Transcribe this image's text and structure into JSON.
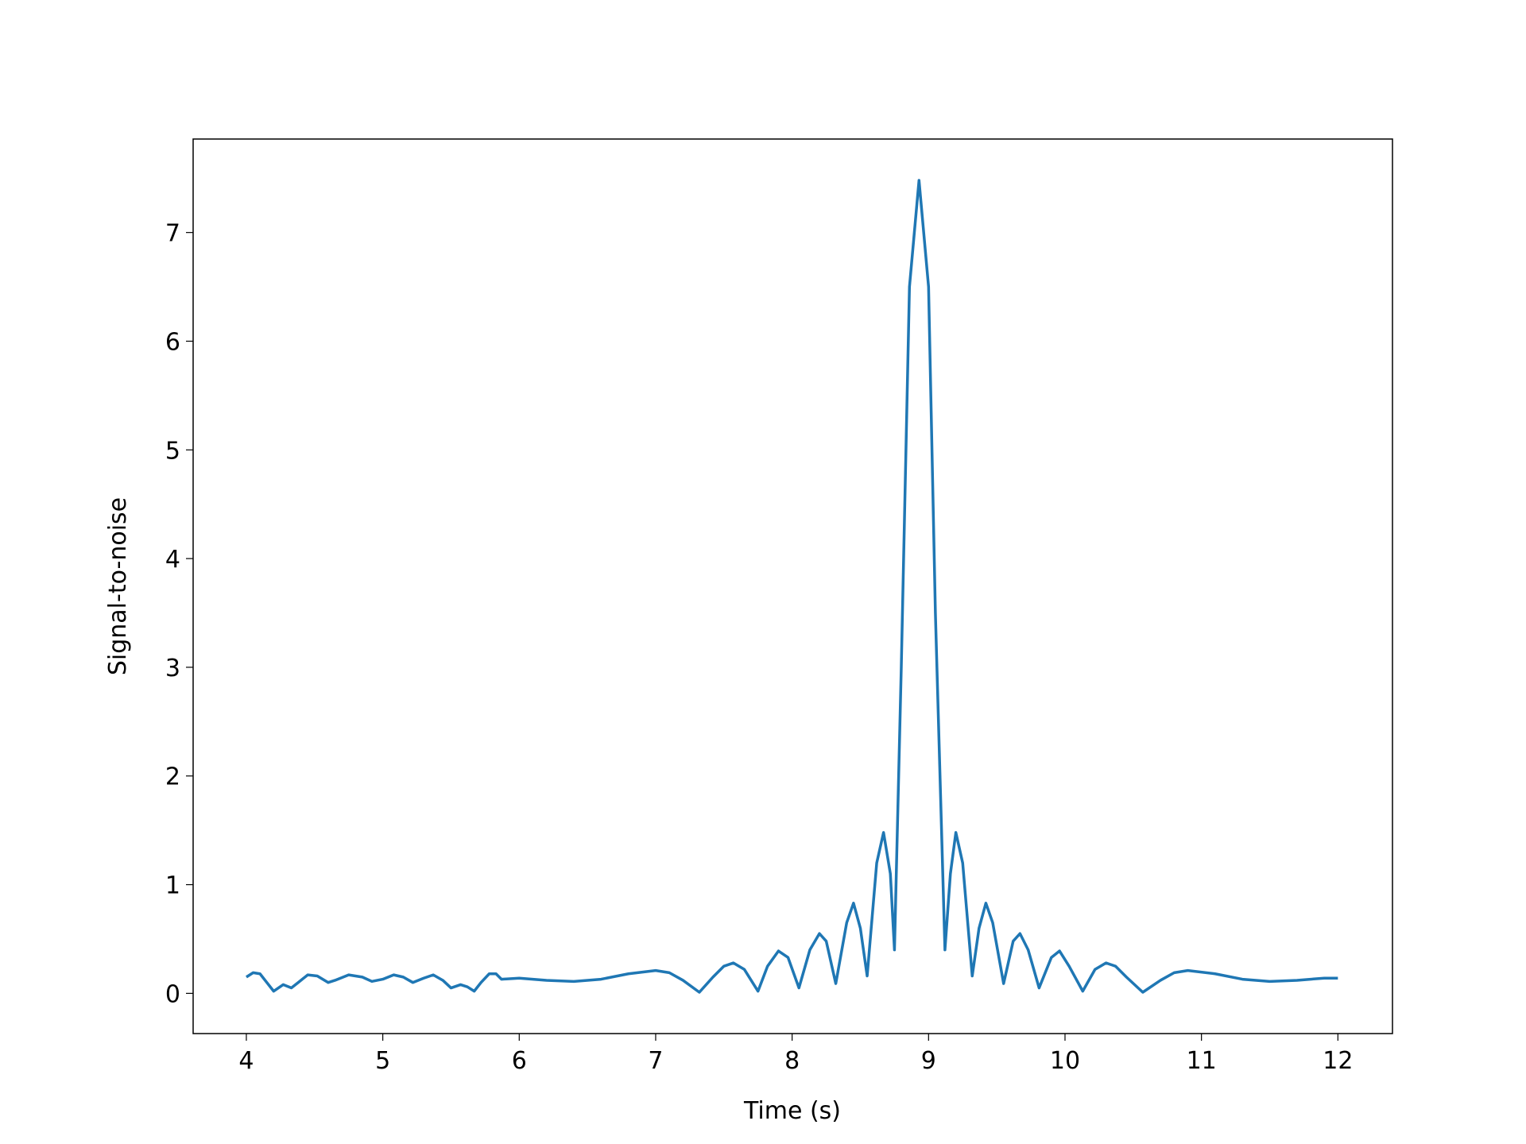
{
  "chart_data": {
    "type": "line",
    "xlabel": "Time (s)",
    "ylabel": "Signal-to-noise",
    "color": "#1f77b4",
    "x": [
      4.0,
      4.05,
      4.1,
      4.15,
      4.2,
      4.27,
      4.33,
      4.38,
      4.45,
      4.52,
      4.6,
      4.65,
      4.75,
      4.85,
      4.92,
      5.0,
      5.08,
      5.15,
      5.22,
      5.3,
      5.37,
      5.44,
      5.5,
      5.57,
      5.62,
      5.67,
      5.72,
      5.78,
      5.83,
      5.87,
      6.0,
      6.2,
      6.4,
      6.6,
      6.8,
      7.0,
      7.1,
      7.2,
      7.32,
      7.42,
      7.5,
      7.57,
      7.65,
      7.75,
      7.82,
      7.9,
      7.97,
      8.05,
      8.13,
      8.2,
      8.25,
      8.32,
      8.4,
      8.45,
      8.5,
      8.55,
      8.62,
      8.67,
      8.72,
      8.75,
      8.8,
      8.86,
      8.93,
      9.0,
      9.05,
      9.12,
      9.16,
      9.2,
      9.25,
      9.32,
      9.37,
      9.42,
      9.47,
      9.55,
      9.62,
      9.67,
      9.73,
      9.81,
      9.9,
      9.96,
      10.03,
      10.13,
      10.22,
      10.3,
      10.37,
      10.45,
      10.57,
      10.7,
      10.8,
      10.9,
      11.1,
      11.3,
      11.5,
      11.7,
      11.9,
      12.0
    ],
    "values": [
      0.15,
      0.19,
      0.18,
      0.1,
      0.02,
      0.08,
      0.05,
      0.1,
      0.17,
      0.16,
      0.1,
      0.12,
      0.17,
      0.15,
      0.11,
      0.13,
      0.17,
      0.15,
      0.1,
      0.14,
      0.17,
      0.12,
      0.05,
      0.08,
      0.06,
      0.02,
      0.1,
      0.18,
      0.18,
      0.13,
      0.14,
      0.12,
      0.11,
      0.13,
      0.18,
      0.21,
      0.19,
      0.12,
      0.01,
      0.15,
      0.25,
      0.28,
      0.22,
      0.02,
      0.25,
      0.39,
      0.33,
      0.05,
      0.4,
      0.55,
      0.48,
      0.09,
      0.65,
      0.83,
      0.6,
      0.16,
      1.2,
      1.48,
      1.1,
      0.4,
      3.0,
      6.5,
      7.48,
      6.5,
      3.5,
      0.4,
      1.1,
      1.48,
      1.2,
      0.16,
      0.6,
      0.83,
      0.65,
      0.09,
      0.48,
      0.55,
      0.4,
      0.05,
      0.33,
      0.39,
      0.25,
      0.02,
      0.22,
      0.28,
      0.25,
      0.15,
      0.01,
      0.12,
      0.19,
      0.21,
      0.18,
      0.13,
      0.11,
      0.12,
      0.14,
      0.14
    ],
    "xlim": [
      3.61,
      12.4
    ],
    "ylim": [
      -0.37,
      7.86
    ],
    "xticks": [
      4,
      5,
      6,
      7,
      8,
      9,
      10,
      11,
      12
    ],
    "yticks": [
      0,
      1,
      2,
      3,
      4,
      5,
      6,
      7
    ],
    "grid": false
  }
}
